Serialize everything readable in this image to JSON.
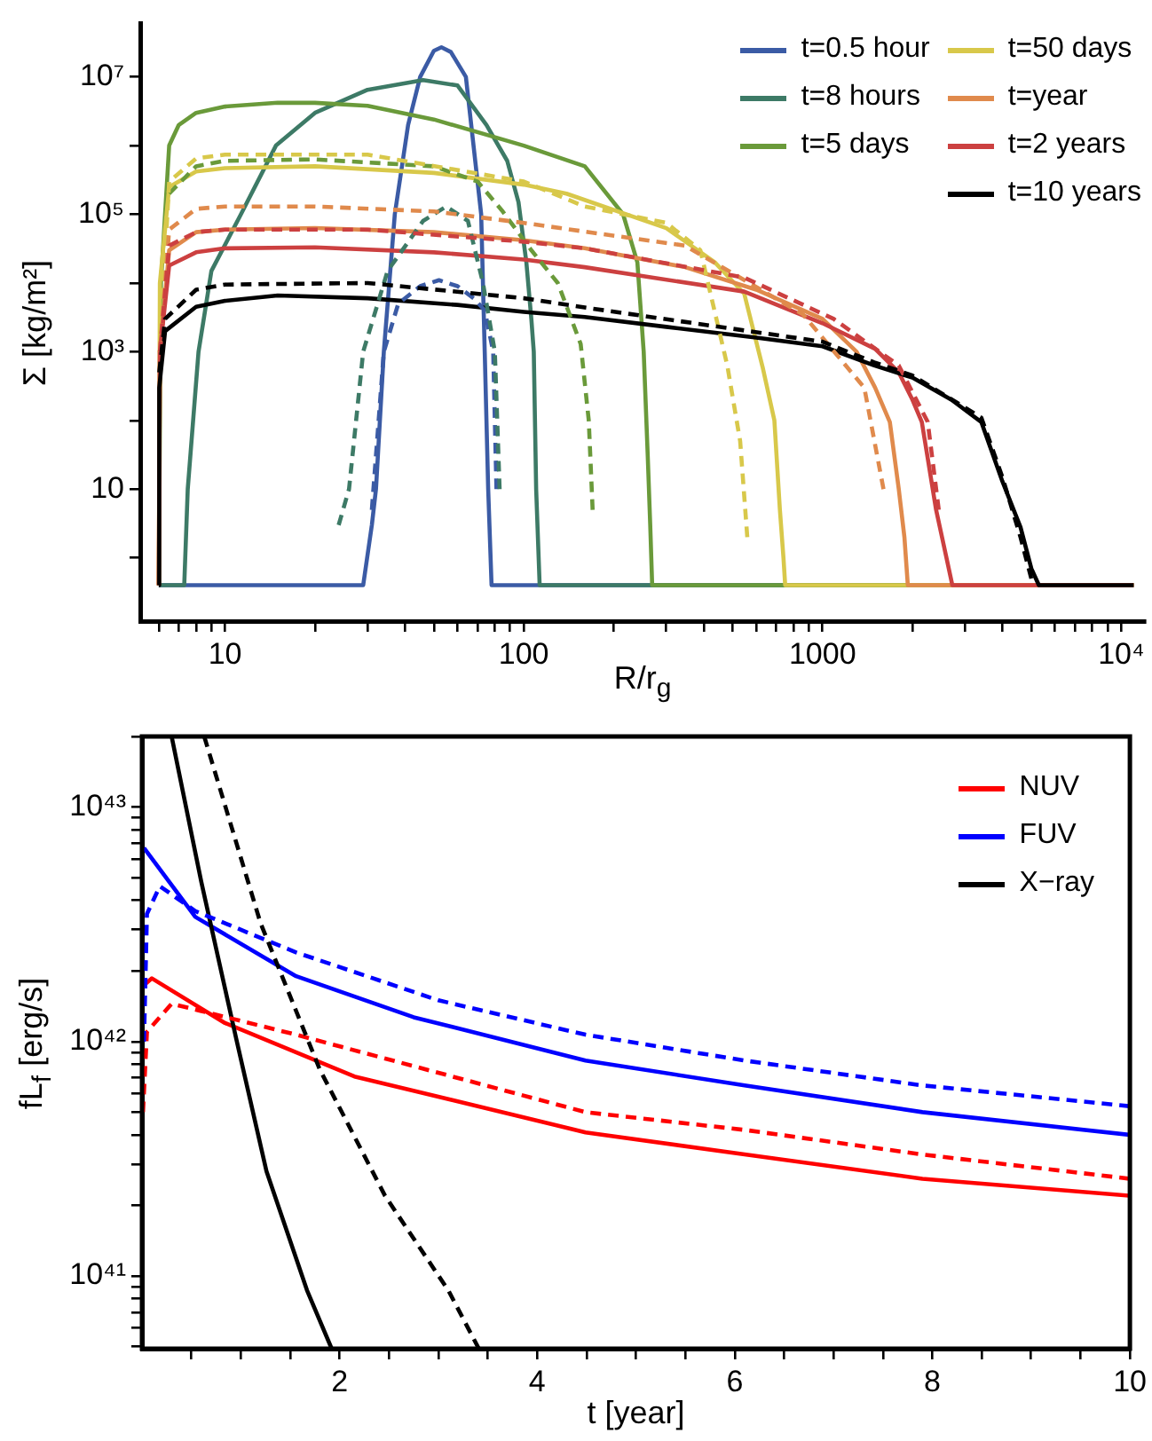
{
  "chart_data": [
    {
      "type": "line",
      "xlabel": "R/r$_{g}$",
      "ylabel": "Σ [kg/m²]",
      "log": "xy",
      "legend": "top right",
      "xlim": [
        5.2,
        12000
      ],
      "ylim": [
        0.12,
        60000000.0
      ],
      "xticks": [
        {
          "value": 6,
          "label": null
        },
        {
          "value": 7,
          "label": null
        },
        {
          "value": 8,
          "label": null
        },
        {
          "value": 9,
          "label": null
        },
        10,
        {
          "value": 20,
          "label": null
        },
        {
          "value": 30,
          "label": null
        },
        {
          "value": 40,
          "label": null
        },
        {
          "value": 50,
          "label": null
        },
        {
          "value": 60,
          "label": null
        },
        {
          "value": 70,
          "label": null
        },
        {
          "value": 80,
          "label": null
        },
        {
          "value": 90,
          "label": null
        },
        100,
        {
          "value": 200,
          "label": null
        },
        {
          "value": 300,
          "label": null
        },
        {
          "value": 400,
          "label": null
        },
        {
          "value": 500,
          "label": null
        },
        {
          "value": 600,
          "label": null
        },
        {
          "value": 700,
          "label": null
        },
        {
          "value": 800,
          "label": null
        },
        {
          "value": 900,
          "label": null
        },
        1000,
        {
          "value": 2000,
          "label": null
        },
        {
          "value": 3000,
          "label": null
        },
        {
          "value": 4000,
          "label": null
        },
        {
          "value": 5000,
          "label": null
        },
        {
          "value": 6000,
          "label": null
        },
        {
          "value": 7000,
          "label": null
        },
        {
          "value": 8000,
          "label": null
        },
        {
          "value": 9000,
          "label": null
        },
        {
          "value": 10000,
          "label": "10⁴"
        }
      ],
      "yticks": [
        {
          "value": 1,
          "label": null
        },
        10,
        {
          "value": 100,
          "label": null
        },
        {
          "value": 1000,
          "label": "10³"
        },
        {
          "value": 10000,
          "label": null
        },
        {
          "value": 100000,
          "label": "10⁵"
        },
        {
          "value": 1000000,
          "label": null
        },
        {
          "value": 10000000,
          "label": "10⁷"
        }
      ],
      "series": [
        {
          "name": "t=0.5 hour",
          "color": "#3b5ba5",
          "x": [
            6,
            29,
            31,
            32,
            34,
            37,
            41,
            45,
            50,
            53,
            57,
            64,
            72,
            74,
            76,
            78,
            11000
          ],
          "values": [
            0.4,
            0.4,
            3,
            10,
            1000,
            100000,
            2000000,
            10000000,
            24000000,
            27000000,
            23000000,
            10000000,
            100000,
            1000,
            10,
            0.4,
            0.4
          ]
        },
        {
          "name": "t=8 hours",
          "color": "#3d7a66",
          "x": [
            6,
            7.3,
            7.5,
            8.15,
            9,
            11.3,
            14.8,
            20,
            30,
            46,
            60,
            75,
            88,
            96,
            102,
            106,
            108,
            110,
            113,
            11000
          ],
          "values": [
            0.4,
            0.4,
            10,
            1000,
            15000,
            100000,
            1000000,
            3000000,
            6500000,
            9000000,
            7500000,
            2000000,
            600000,
            150000,
            20000,
            3000,
            1000,
            10,
            0.4,
            0.4
          ]
        },
        {
          "name": "t=5 days",
          "color": "#6a9a3a",
          "x": [
            6,
            6.1,
            6.5,
            7,
            8,
            10,
            15,
            20,
            30,
            50,
            100,
            160,
            215,
            240,
            252,
            260,
            265,
            269,
            11000
          ],
          "values": [
            0.4,
            10000,
            1000000,
            2000000,
            3000000,
            3700000,
            4200000,
            4200000,
            3800000,
            2400000,
            1000000,
            500000,
            100000,
            20000,
            1000,
            30,
            3,
            0.4,
            0.4
          ]
        },
        {
          "name": "t=50 days",
          "color": "#d8c84a",
          "x": [
            6,
            6.05,
            6.5,
            8,
            10,
            20,
            50,
            100,
            139,
            300,
            436,
            547,
            630,
            690,
            720,
            740,
            750,
            11000
          ],
          "values": [
            0.4,
            10000,
            250000,
            420000,
            470000,
            500000,
            400000,
            270000,
            200000,
            63000,
            20000,
            7000,
            600,
            100,
            5,
            1,
            0.4,
            0.4
          ]
        },
        {
          "name": "t=year",
          "color": "#e08a4c",
          "x": [
            6,
            6.05,
            6.5,
            8,
            10,
            20,
            50,
            100,
            160,
            347,
            600,
            1000,
            1300,
            1500,
            1680,
            1800,
            1880,
            1930,
            11000
          ],
          "values": [
            0.4,
            1000,
            30000,
            55000,
            60000,
            63000,
            55000,
            42000,
            32000,
            17000,
            8000,
            3000,
            1000,
            300,
            95,
            10,
            2,
            0.4,
            0.4
          ]
        },
        {
          "name": "t=2 years",
          "color": "#cc4040",
          "x": [
            6,
            6.05,
            6.5,
            8,
            10,
            20,
            50,
            100,
            160,
            547,
            1000,
            1500,
            1800,
            2000,
            2150,
            2400,
            2600,
            2720,
            11000
          ],
          "values": [
            0.4,
            1000,
            18000,
            28000,
            32000,
            33000,
            28000,
            22000,
            17000,
            7500,
            2600,
            1100,
            500,
            200,
            95,
            5,
            1,
            0.4,
            0.4
          ]
        },
        {
          "name": "t=10 years",
          "color": "#000000",
          "x": [
            6,
            6.02,
            6.3,
            8,
            10,
            15,
            30,
            60,
            100,
            160,
            300,
            600,
            1000,
            1490,
            2000,
            2700,
            3400,
            4000,
            4600,
            5000,
            5300,
            11000
          ],
          "values": [
            0.4,
            300,
            2000,
            4500,
            5500,
            6600,
            6000,
            4800,
            3800,
            3200,
            2300,
            1600,
            1200,
            630,
            420,
            200,
            95,
            13,
            2.8,
            0.7,
            0.4,
            0.4
          ]
        },
        {
          "color": "#3b5ba5",
          "line_style": "dashed",
          "x": [
            31,
            34,
            38,
            45,
            52,
            60,
            68,
            74,
            79,
            81
          ],
          "values": [
            5,
            1000,
            5000,
            9000,
            11000,
            9000,
            6000,
            4000,
            1000,
            10
          ]
        },
        {
          "color": "#3d7a66",
          "line_style": "dashed",
          "x": [
            24,
            26,
            29,
            35,
            46,
            55,
            65,
            73,
            80,
            83
          ],
          "values": [
            3,
            10,
            1000,
            15000,
            80000,
            130000,
            80000,
            10000,
            1000,
            10
          ]
        },
        {
          "color": "#6a9a3a",
          "line_style": "dashed",
          "x": [
            6.5,
            8,
            10,
            20,
            50,
            70,
            85,
            106,
            130,
            155,
            165,
            170
          ],
          "values": [
            200000,
            500000,
            600000,
            630000,
            500000,
            300000,
            110000,
            30000,
            10000,
            1300,
            100,
            5
          ]
        },
        {
          "color": "#d8c84a",
          "line_style": "dashed",
          "x": [
            6.05,
            6.5,
            8,
            10,
            30,
            100,
            160,
            300,
            390,
            480,
            530,
            560
          ],
          "values": [
            1000,
            300000,
            650000,
            740000,
            740000,
            300000,
            130000,
            75000,
            30000,
            630,
            50,
            2
          ]
        },
        {
          "color": "#e08a4c",
          "line_style": "dashed",
          "x": [
            6.05,
            6.5,
            8,
            10,
            20,
            50,
            100,
            160,
            347,
            860,
            1380,
            1600
          ],
          "values": [
            1000,
            60000,
            120000,
            130000,
            130000,
            110000,
            75000,
            56000,
            35000,
            3500,
            300,
            10
          ]
        },
        {
          "color": "#cc4040",
          "line_style": "dashed",
          "x": [
            6.05,
            6.5,
            8,
            10,
            30,
            100,
            160,
            547,
            1090,
            1800,
            2250,
            2450
          ],
          "values": [
            1000,
            35000,
            55000,
            60000,
            60000,
            40000,
            32000,
            12000,
            3000,
            630,
            95,
            5
          ]
        },
        {
          "color": "#000000",
          "line_style": "dashed",
          "x": [
            6.02,
            6.3,
            8,
            10,
            30,
            100,
            160,
            1000,
            1490,
            2000,
            3400,
            4000,
            4600,
            5000
          ],
          "values": [
            500,
            3000,
            8000,
            9500,
            10000,
            6000,
            4400,
            1400,
            700,
            450,
            110,
            15,
            2,
            0.5
          ]
        }
      ]
    },
    {
      "type": "line",
      "xlabel": "t [year]",
      "ylabel": "fL$_{f}$ [erg/s]",
      "log": "y",
      "legend": "top right",
      "xlim": [
        0,
        10
      ],
      "ylim": [
        4.9e+40,
        2e+43
      ],
      "xticks": [
        {
          "value": 0.5,
          "label": null
        },
        {
          "value": 1,
          "label": null
        },
        {
          "value": 1.5,
          "label": null
        },
        2,
        {
          "value": 2.5,
          "label": null
        },
        {
          "value": 3,
          "label": null
        },
        {
          "value": 3.5,
          "label": null
        },
        4,
        {
          "value": 4.5,
          "label": null
        },
        {
          "value": 5,
          "label": null
        },
        {
          "value": 5.5,
          "label": null
        },
        6,
        {
          "value": 6.5,
          "label": null
        },
        {
          "value": 7,
          "label": null
        },
        {
          "value": 7.5,
          "label": null
        },
        8,
        {
          "value": 8.5,
          "label": null
        },
        {
          "value": 9,
          "label": null
        },
        {
          "value": 9.5,
          "label": null
        },
        10
      ],
      "yticks": [
        {
          "value": 5e+40,
          "label": null
        },
        {
          "value": 6e+40,
          "label": null
        },
        {
          "value": 7e+40,
          "label": null
        },
        {
          "value": 8e+40,
          "label": null
        },
        {
          "value": 9e+40,
          "label": null
        },
        {
          "value": 1e+41,
          "label": "10⁴¹"
        },
        {
          "value": 2e+41,
          "label": null
        },
        {
          "value": 3e+41,
          "label": null
        },
        {
          "value": 4e+41,
          "label": null
        },
        {
          "value": 5e+41,
          "label": null
        },
        {
          "value": 6e+41,
          "label": null
        },
        {
          "value": 7e+41,
          "label": null
        },
        {
          "value": 8e+41,
          "label": null
        },
        {
          "value": 9e+41,
          "label": null
        },
        {
          "value": 1e+42,
          "label": "10⁴²"
        },
        {
          "value": 2e+42,
          "label": null
        },
        {
          "value": 3e+42,
          "label": null
        },
        {
          "value": 4e+42,
          "label": null
        },
        {
          "value": 5e+42,
          "label": null
        },
        {
          "value": 6e+42,
          "label": null
        },
        {
          "value": 7e+42,
          "label": null
        },
        {
          "value": 8e+42,
          "label": null
        },
        {
          "value": 9e+42,
          "label": null
        },
        {
          "value": 1e+43,
          "label": "10⁴³"
        },
        {
          "value": 2e+43,
          "label": null
        }
      ],
      "series": [
        {
          "name": "NUV",
          "color": "#ff0000",
          "x": [
            0.02,
            0.1,
            0.84,
            2.15,
            4.49,
            6.1,
            7.9,
            10
          ],
          "values": [
            1.74e+42,
            1.86e+42,
            1.2e+42,
            7.1e+41,
            4.1e+41,
            3.3e+41,
            2.6e+41,
            2.2e+41
          ]
        },
        {
          "name": "FUV",
          "color": "#0000ff",
          "x": [
            0.02,
            0.54,
            1.56,
            2.75,
            4.49,
            6.1,
            7.9,
            10
          ],
          "values": [
            6.7e+42,
            3.4e+42,
            1.9e+42,
            1.27e+42,
            8.3e+41,
            6.5e+41,
            5e+41,
            4e+41
          ]
        },
        {
          "name": "X−ray",
          "color": "#000000",
          "x": [
            0.3,
            0.6,
            0.96,
            1.26,
            1.67,
            1.92
          ],
          "values": [
            2e+43,
            4.8e+42,
            1e+42,
            2.8e+41,
            8.7e+40,
            4.9e+40
          ]
        },
        {
          "color": "#ff0000",
          "line_style": "dashed",
          "x": [
            0.01,
            0.05,
            0.3,
            0.6,
            1.56,
            4.49,
            6.1,
            7.9,
            10
          ],
          "values": [
            5e+41,
            1.1e+42,
            1.45e+42,
            1.35e+42,
            1.07e+42,
            5e+41,
            4.2e+41,
            3.3e+41,
            2.6e+41
          ]
        },
        {
          "color": "#0000ff",
          "line_style": "dashed",
          "x": [
            0.02,
            0.05,
            0.18,
            0.54,
            1.56,
            3,
            4.49,
            6.1,
            7.9,
            10
          ],
          "values": [
            1e+42,
            3.5e+42,
            4.6e+42,
            3.6e+42,
            2.4e+42,
            1.5e+42,
            1.07e+42,
            8.3e+41,
            6.5e+41,
            5.3e+41
          ]
        },
        {
          "color": "#000000",
          "line_style": "dashed",
          "x": [
            0.63,
            1.2,
            1.8,
            2.46,
            3.1,
            3.41
          ],
          "values": [
            2e+43,
            3.2e+42,
            7.6e+41,
            2.2e+41,
            8.7e+40,
            4.9e+40
          ]
        }
      ]
    }
  ]
}
